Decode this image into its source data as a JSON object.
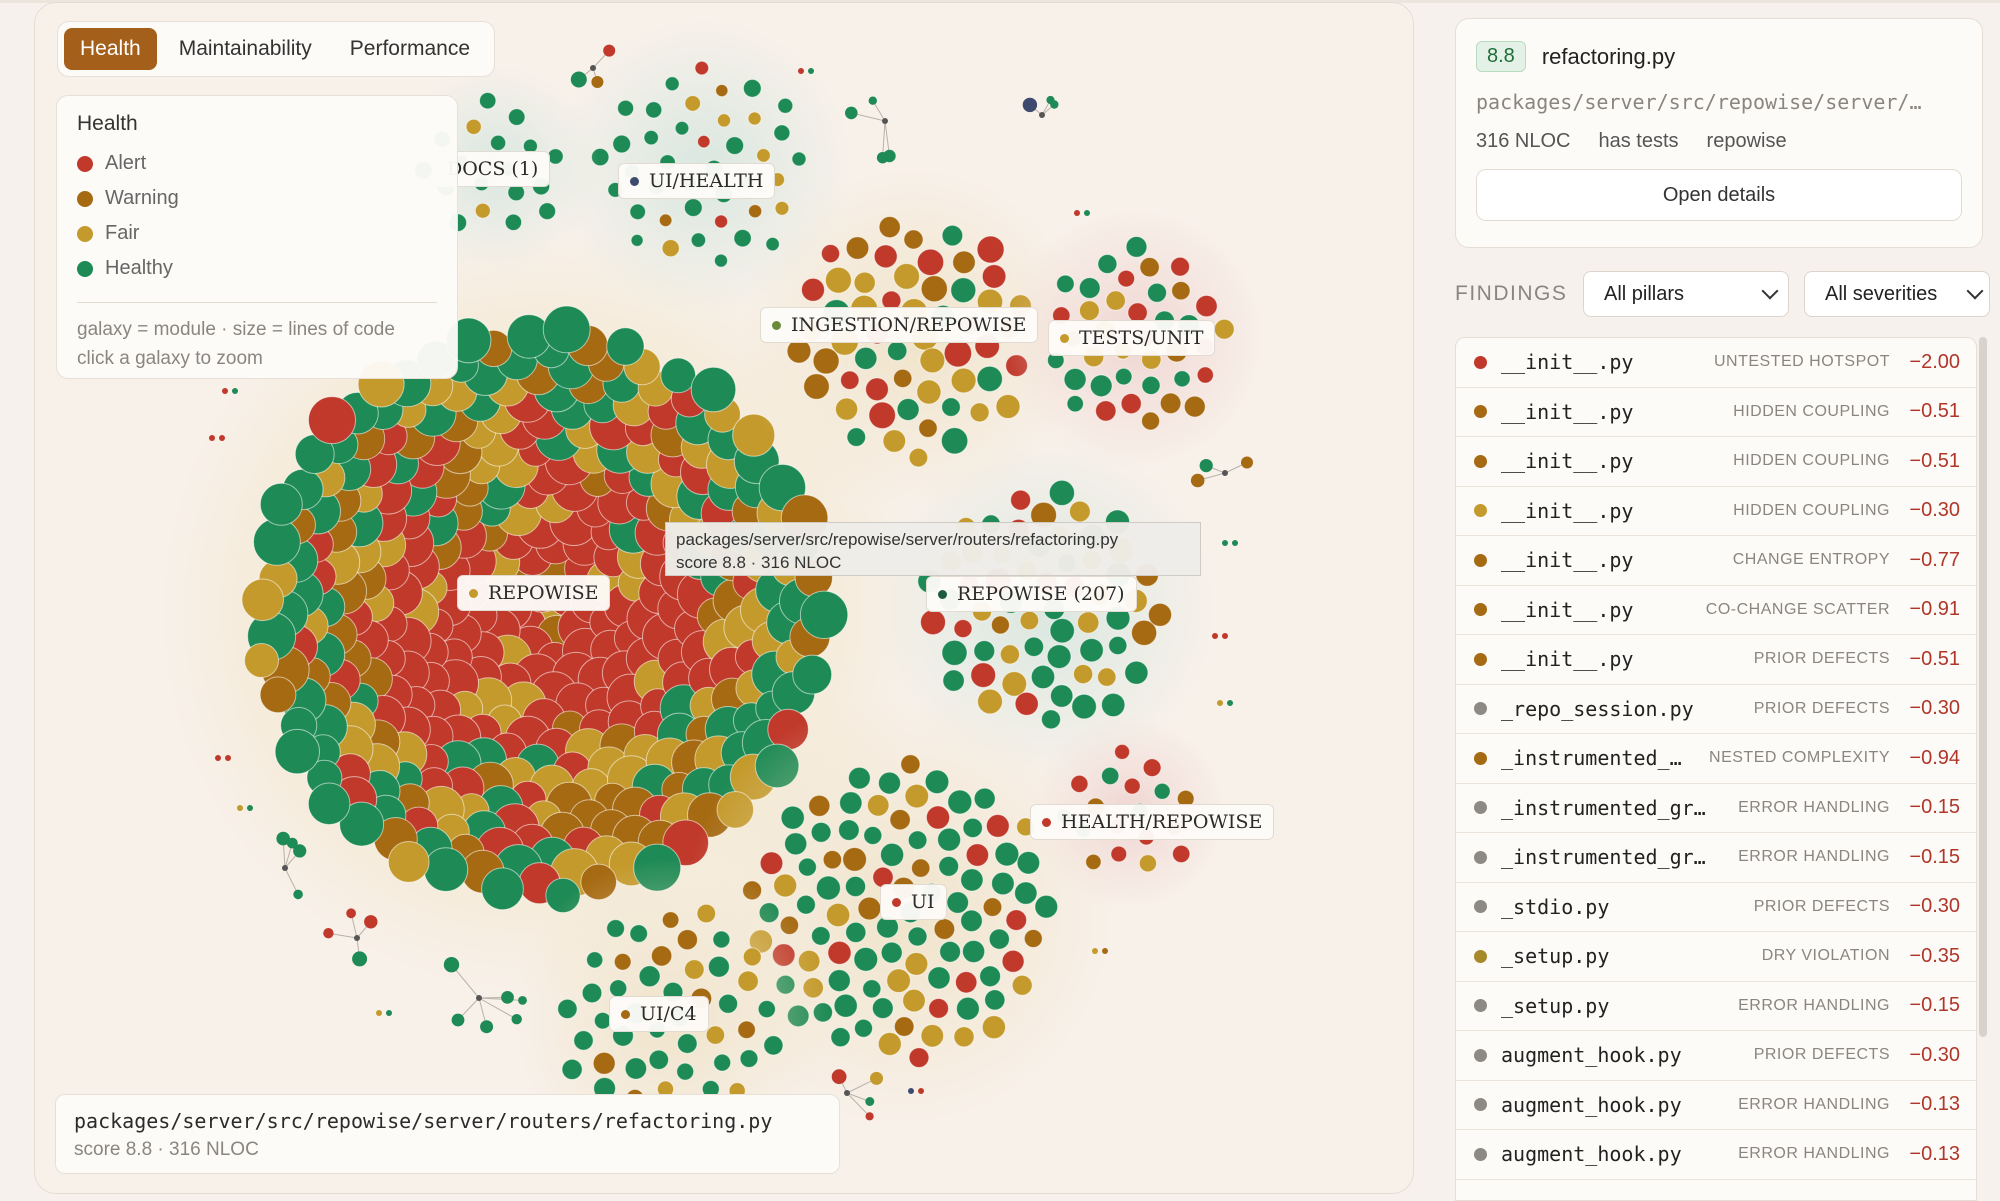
{
  "tabs": [
    {
      "label": "Health",
      "active": true
    },
    {
      "label": "Maintainability",
      "active": false
    },
    {
      "label": "Performance",
      "active": false
    }
  ],
  "legend": {
    "title": "Health",
    "items": [
      {
        "label": "Alert",
        "color": "#c0392b"
      },
      {
        "label": "Warning",
        "color": "#a66a12"
      },
      {
        "label": "Fair",
        "color": "#c49a2c"
      },
      {
        "label": "Healthy",
        "color": "#1e8a55"
      }
    ],
    "note_line1": "galaxy = module · size = lines of code",
    "note_line2": "click a galaxy to zoom"
  },
  "galaxy_labels": [
    {
      "text": "DOCS (1)"
    },
    {
      "text": "UI/HEALTH"
    },
    {
      "text": "INGESTION/REPOWISE"
    },
    {
      "text": "TESTS/UNIT"
    },
    {
      "text": "REPOWISE"
    },
    {
      "text": "REPOWISE (207)"
    },
    {
      "text": "HEALTH/REPOWISE"
    },
    {
      "text": "UI"
    },
    {
      "text": "UI/C4"
    }
  ],
  "hover_tooltip": {
    "path": "packages/server/src/repowise/server/routers/refactoring.py",
    "meta": "score 8.8 · 316 NLOC"
  },
  "selected_path": {
    "path": "packages/server/src/repowise/server/routers/refactoring.py",
    "meta": "score 8.8 · 316 NLOC"
  },
  "file_card": {
    "score": "8.8",
    "name": "refactoring.py",
    "path": "packages/server/src/repowise/server/…",
    "nloc": "316 NLOC",
    "tests": "has tests",
    "repo": "repowise",
    "open_label": "Open details"
  },
  "findings": {
    "label": "FINDINGS",
    "pillar_filter": "All pillars",
    "severity_filter": "All severities",
    "rows": [
      {
        "file": "__init__.py",
        "category": "UNTESTED HOTSPOT",
        "value": "−2.00",
        "color": "#c0392b"
      },
      {
        "file": "__init__.py",
        "category": "HIDDEN COUPLING",
        "value": "−0.51",
        "color": "#a66a12"
      },
      {
        "file": "__init__.py",
        "category": "HIDDEN COUPLING",
        "value": "−0.51",
        "color": "#a66a12"
      },
      {
        "file": "__init__.py",
        "category": "HIDDEN COUPLING",
        "value": "−0.30",
        "color": "#c49a2c"
      },
      {
        "file": "__init__.py",
        "category": "CHANGE ENTROPY",
        "value": "−0.77",
        "color": "#a66a12"
      },
      {
        "file": "__init__.py",
        "category": "CO-CHANGE SCATTER",
        "value": "−0.91",
        "color": "#a66a12"
      },
      {
        "file": "__init__.py",
        "category": "PRIOR DEFECTS",
        "value": "−0.51",
        "color": "#a66a12"
      },
      {
        "file": "_repo_session.py",
        "category": "PRIOR DEFECTS",
        "value": "−0.30",
        "color": "#8d8a86"
      },
      {
        "file": "_instrumented_…",
        "category": "NESTED COMPLEXITY",
        "value": "−0.94",
        "color": "#a66a12"
      },
      {
        "file": "_instrumented_gr…",
        "category": "ERROR HANDLING",
        "value": "−0.15",
        "color": "#8d8a86"
      },
      {
        "file": "_instrumented_gr…",
        "category": "ERROR HANDLING",
        "value": "−0.15",
        "color": "#8d8a86"
      },
      {
        "file": "_stdio.py",
        "category": "PRIOR DEFECTS",
        "value": "−0.30",
        "color": "#8d8a86"
      },
      {
        "file": "_setup.py",
        "category": "DRY VIOLATION",
        "value": "−0.35",
        "color": "#a68a2a"
      },
      {
        "file": "_setup.py",
        "category": "ERROR HANDLING",
        "value": "−0.15",
        "color": "#8d8a86"
      },
      {
        "file": "augment_hook.py",
        "category": "PRIOR DEFECTS",
        "value": "−0.30",
        "color": "#8d8a86"
      },
      {
        "file": "augment_hook.py",
        "category": "ERROR HANDLING",
        "value": "−0.13",
        "color": "#8d8a86"
      },
      {
        "file": "augment_hook.py",
        "category": "ERROR HANDLING",
        "value": "−0.13",
        "color": "#8d8a86"
      }
    ]
  },
  "colors": {
    "alert": "#c0392b",
    "warning": "#a66a12",
    "fair": "#c49a2c",
    "healthy": "#1e8a55",
    "accent": "#a4601a"
  }
}
